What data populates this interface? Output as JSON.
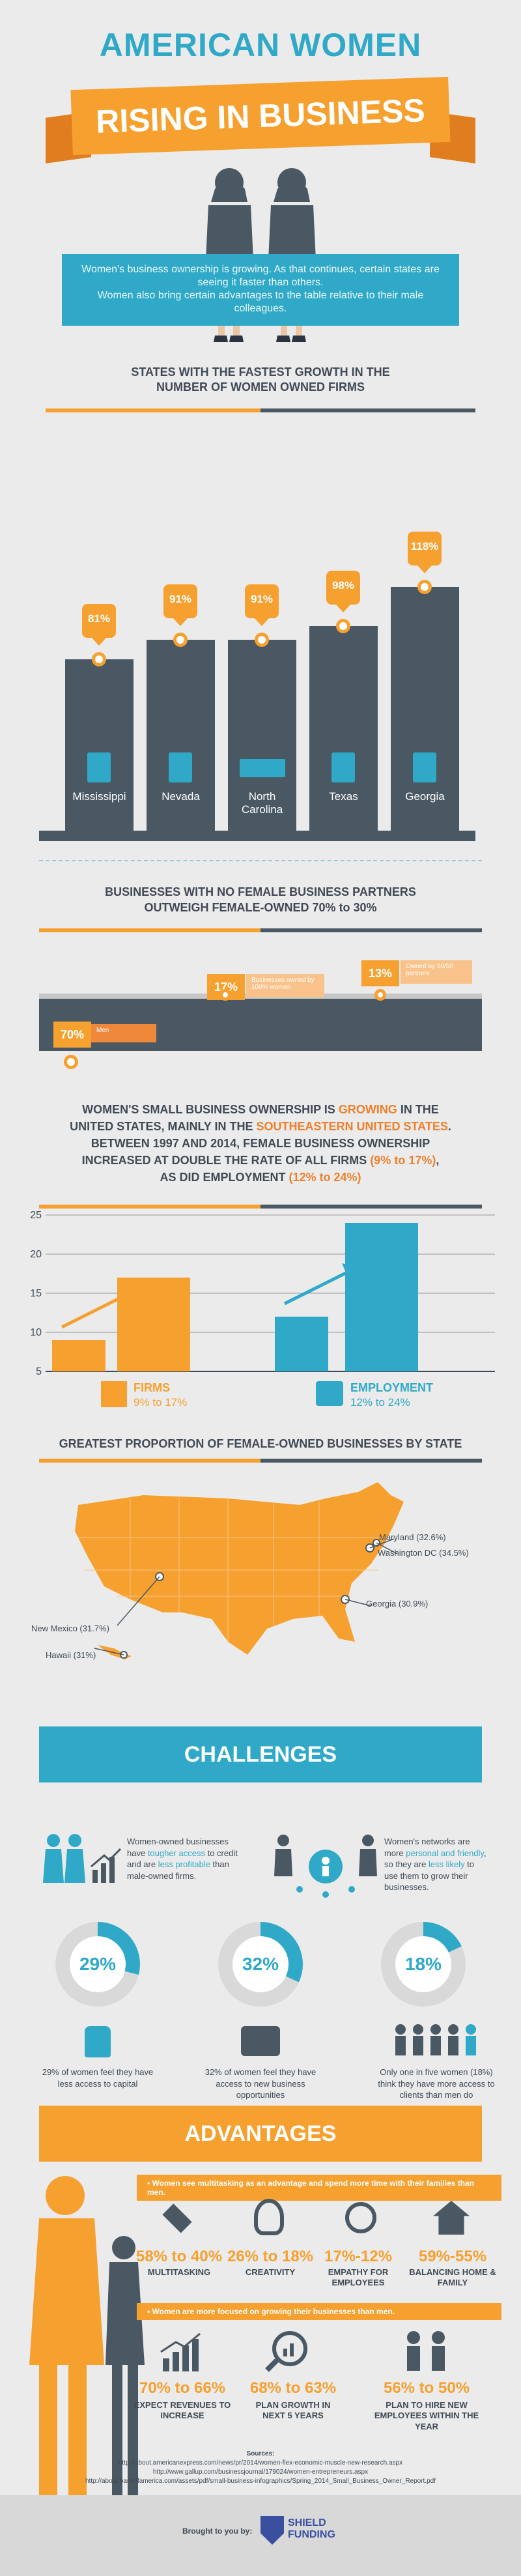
{
  "header": {
    "title": "AMERICAN WOMEN",
    "ribbon": "RISING IN BUSINESS"
  },
  "intro": {
    "line1": "Women's business ownership is growing. As that continues, certain states are seeing it faster than others.",
    "line2": "Women also bring certain advantages to the table relative to their male colleagues."
  },
  "fastest": {
    "title": "STATES WITH THE FASTEST GROWTH IN THE NUMBER OF WOMEN OWNED FIRMS",
    "chart_data": {
      "type": "bar",
      "categories": [
        "Mississippi",
        "Nevada",
        "North Carolina",
        "Texas",
        "Georgia"
      ],
      "values": [
        81,
        91,
        91,
        98,
        118
      ],
      "labels": [
        "81%",
        "91%",
        "91%",
        "98%",
        "118%"
      ],
      "state_names": [
        "Mississippi",
        "Nevada",
        "North",
        "Carolina",
        "Texas",
        "Georgia"
      ]
    }
  },
  "partners": {
    "title_line1": "BUSINESSES WITH NO FEMALE BUSINESS PARTNERS",
    "title_line2": "OUTWEIGH FEMALE-OWNED 70% to 30%",
    "items": [
      {
        "pct": "70%",
        "note": "Men"
      },
      {
        "pct": "17%",
        "note": "Businesses owned by 100% women"
      },
      {
        "pct": "13%",
        "note": "Owned by 50/50 partners"
      }
    ]
  },
  "growth": {
    "title_l1_a": "WOMEN'S SMALL BUSINESS OWNERSHIP IS ",
    "title_l1_b": "GROWING",
    "title_l1_c": " IN THE",
    "title_l2_a": "UNITED STATES, MAINLY IN THE ",
    "title_l2_b": "SOUTHEASTERN UNITED STATES",
    "title_l2_c": ".",
    "title_l3": "BETWEEN 1997 AND 2014, FEMALE BUSINESS OWNERSHIP",
    "title_l4_a": "INCREASED AT DOUBLE THE RATE OF ALL FIRMS ",
    "title_l4_b": "(9% to 17%)",
    "title_l4_c": ",",
    "title_l5_a": "AS DID EMPLOYMENT ",
    "title_l5_b": "(12% to 24%)",
    "chart_data": {
      "type": "bar",
      "categories": [
        "FIRMS",
        "EMPLOYMENT"
      ],
      "series": [
        {
          "values": [
            9,
            12
          ]
        },
        {
          "values": [
            17,
            24
          ]
        }
      ],
      "ylim": [
        5,
        25
      ],
      "yticks": [
        "25",
        "20",
        "15",
        "10",
        "5"
      ],
      "legend": [
        {
          "label": "FIRMS",
          "sub": "9% to 17%"
        },
        {
          "label": "EMPLOYMENT",
          "sub": "12% to 24%"
        }
      ]
    }
  },
  "map": {
    "title": "GREATEST PROPORTION OF FEMALE-OWNED BUSINESSES BY STATE",
    "labels": [
      "Maryland (32.6%)",
      "Washington DC (34.5%)",
      "Georgia (30.9%)",
      "New Mexico (31.7%)",
      "Hawaii (31%)"
    ]
  },
  "challenges": {
    "banner": "CHALLENGES",
    "text1_a": "Women-owned businesses have ",
    "text1_b": "tougher access",
    "text1_c": " to credit and are ",
    "text1_d": "less profitable",
    "text1_e": " than male-owned firms.",
    "text2_a": "Women's networks are more ",
    "text2_b": "personal and friendly",
    "text2_c": ", so they are ",
    "text2_d": "less likely",
    "text2_e": " to use them to grow their businesses.",
    "stats": [
      {
        "pct": "29%",
        "value": 29,
        "desc": "29% of women feel they have less access to capital"
      },
      {
        "pct": "32%",
        "value": 32,
        "desc": "32% of women feel they have access to new business opportunities"
      },
      {
        "pct": "18%",
        "value": 18,
        "desc": "Only one in five women (18%) think they have more access to clients than men do"
      }
    ]
  },
  "advantages": {
    "banner": "ADVANTAGES",
    "pill1": "• Women see multitasking as an advantage and spend more time  with their families than men.",
    "pill2": "• Women are more focused on growing their businesses than men.",
    "row1": [
      {
        "num": "58% to 40%",
        "label": "MULTITASKING"
      },
      {
        "num": "26% to 18%",
        "label": "CREATIVITY"
      },
      {
        "num": "17%-12%",
        "label": "EMPATHY FOR EMPLOYEES"
      },
      {
        "num": "59%-55%",
        "label": "BALANCING HOME & FAMILY"
      }
    ],
    "row2": [
      {
        "num": "70% to 66%",
        "label": "EXPECT REVENUES TO INCREASE"
      },
      {
        "num": "68% to 63%",
        "label": "PLAN GROWTH IN NEXT 5 YEARS"
      },
      {
        "num": "56% to 50%",
        "label": "PLAN TO HIRE NEW EMPLOYEES WITHIN THE YEAR"
      }
    ]
  },
  "sources": {
    "title": "Sources:",
    "lines": [
      "http://about.americanexpress.com/news/pr/2014/women-flex-economic-muscle-new-research.aspx",
      "http://www.gallup.com/businessjournal/179024/women-entrepreneurs.aspx",
      "http://about.bankofamerica.com/assets/pdf/small-business-infographics/Spring_2014_Small_Business_Owner_Report.pdf"
    ]
  },
  "footer": {
    "brought": "Brought to you by:",
    "logo1": "SHIELD",
    "logo2": "FUNDING"
  }
}
